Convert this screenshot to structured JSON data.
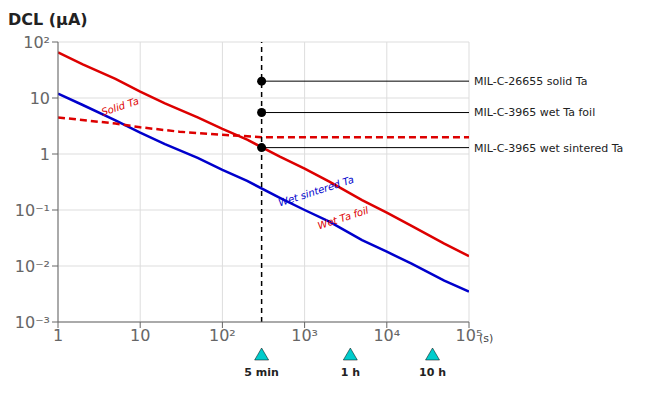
{
  "chart_data": {
    "type": "line",
    "title": "DCL (μA)",
    "x_label": "(s)",
    "log": true,
    "grid": true,
    "xlim": [
      1,
      100000
    ],
    "ylim": [
      0.001,
      100
    ],
    "xticks": [
      1,
      10,
      {
        "value": 100,
        "label": "10²"
      },
      {
        "value": 1000,
        "label": "10³"
      },
      {
        "value": 10000,
        "label": "10⁴"
      },
      {
        "value": 100000,
        "label": "10⁵"
      }
    ],
    "yticks": [
      {
        "value": 0.001,
        "label": "10⁻³"
      },
      {
        "value": 0.01,
        "label": "10⁻²"
      },
      {
        "value": 0.1,
        "label": "10⁻¹"
      },
      1,
      10,
      {
        "value": 100,
        "label": "10²"
      }
    ],
    "series": [
      {
        "color": "#dd0000",
        "x": [
          1,
          2,
          5,
          10,
          20,
          50,
          100,
          200,
          500,
          1000,
          2000,
          5000,
          10000,
          20000,
          50000,
          100000
        ],
        "values": [
          65,
          40,
          22,
          13,
          8.0,
          4.5,
          2.8,
          1.8,
          0.9,
          0.55,
          0.32,
          0.15,
          0.09,
          0.052,
          0.025,
          0.015
        ]
      },
      {
        "color": "#0000cc",
        "x": [
          1,
          2,
          5,
          10,
          20,
          50,
          100,
          200,
          500,
          1000,
          2000,
          5000,
          10000,
          20000,
          50000,
          100000
        ],
        "values": [
          12,
          7.5,
          4.0,
          2.4,
          1.5,
          0.85,
          0.52,
          0.33,
          0.165,
          0.1,
          0.062,
          0.029,
          0.018,
          0.011,
          0.0055,
          0.0035
        ]
      },
      {
        "color": "#dd0000",
        "line_style": "dashed",
        "x": [
          1,
          5,
          10,
          30,
          100,
          300,
          1000,
          3000,
          10000,
          30000,
          100000
        ],
        "values": [
          4.5,
          3.5,
          3.0,
          2.5,
          2.2,
          2.0,
          2.0,
          2.0,
          2.0,
          2.0,
          2.0
        ]
      }
    ],
    "vlines": [
      300
    ],
    "reference_points": {
      "color": "black",
      "points": [
        {
          "x": 300,
          "y": 20,
          "label": "MIL-C-26655 solid Ta"
        },
        {
          "x": 300,
          "y": 5.5,
          "label": "MIL-C-3965 wet Ta foil"
        },
        {
          "x": 300,
          "y": 1.3,
          "label": "MIL-C-3965 wet sintered Ta"
        }
      ]
    },
    "annotations": [
      {
        "text": "Solid Ta",
        "x": 3.5,
        "y": 4.8,
        "color": "#dd0000"
      },
      {
        "text": "Wet sintered Ta",
        "x": 500,
        "y": 0.115,
        "color": "#0000cc"
      },
      {
        "text": "Wet Ta foil",
        "x": 1500,
        "y": 0.045,
        "color": "#dd0000"
      }
    ],
    "time_marks": {
      "color": "#00cccc",
      "marks": [
        {
          "x": 300,
          "label": "5 min"
        },
        {
          "x": 3600,
          "label": "1 h"
        },
        {
          "x": 36000,
          "label": "10 h"
        }
      ]
    }
  }
}
